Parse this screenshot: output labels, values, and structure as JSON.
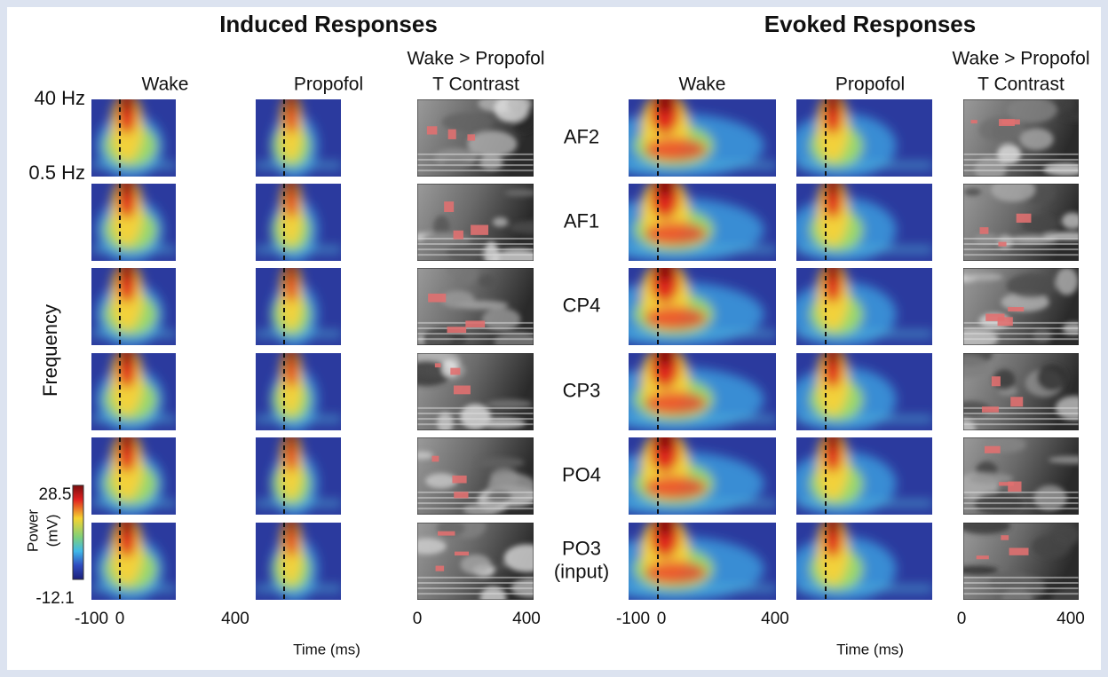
{
  "sections": [
    {
      "title": "Induced Responses",
      "columns": [
        "Wake",
        "Propofol",
        "T Contrast"
      ],
      "contrast_caption": "Wake > Propofol",
      "time_ticks": [
        -100,
        0,
        400
      ],
      "contrast_ticks": [
        0,
        400
      ],
      "time_label": "Time (ms)"
    },
    {
      "title": "Evoked Responses",
      "columns": [
        "Wake",
        "Propofol",
        "T Contrast"
      ],
      "contrast_caption": "Wake > Propofol",
      "time_ticks": [
        -100,
        0,
        400
      ],
      "contrast_ticks": [
        0,
        400
      ],
      "time_label": "Time (ms)"
    }
  ],
  "rows": [
    [
      "AF2"
    ],
    [
      "AF1"
    ],
    [
      "CP4"
    ],
    [
      "CP3"
    ],
    [
      "PO4"
    ],
    [
      "PO3",
      "(input)"
    ]
  ],
  "frequency_axis": {
    "top": "40 Hz",
    "bottom": "0.5 Hz",
    "label": "Frequency"
  },
  "colorbar": {
    "max": 28.5,
    "min": -12.1,
    "label": "Power",
    "unit": "(mV)"
  }
}
